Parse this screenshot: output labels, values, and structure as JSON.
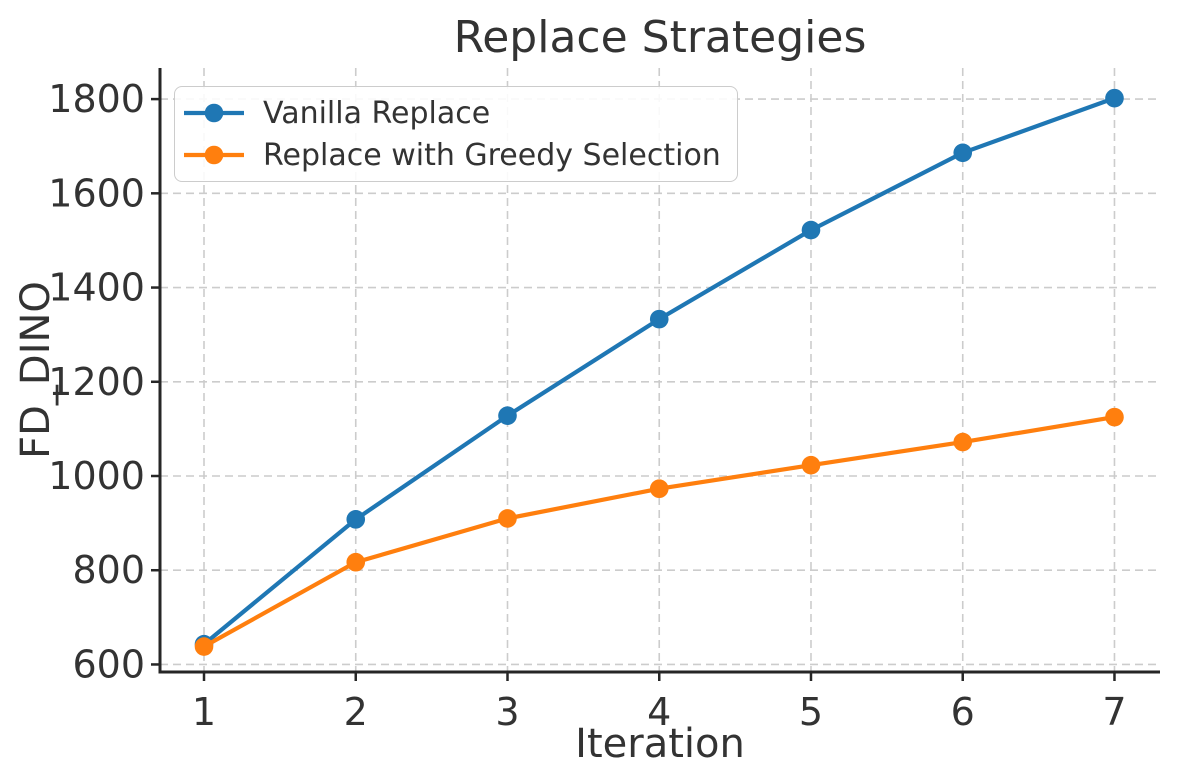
{
  "chart_data": {
    "type": "line",
    "title": "Replace Strategies",
    "xlabel": "Iteration",
    "ylabel": "FD_DINO",
    "x": [
      1,
      2,
      3,
      4,
      5,
      6,
      7
    ],
    "series": [
      {
        "name": "Vanilla Replace",
        "color": "#1f77b4",
        "values": [
          643,
          908,
          1128,
          1333,
          1522,
          1686,
          1802
        ]
      },
      {
        "name": "Replace with Greedy Selection",
        "color": "#ff7f0e",
        "values": [
          638,
          817,
          910,
          973,
          1023,
          1072,
          1125
        ]
      }
    ],
    "xticks": [
      1,
      2,
      3,
      4,
      5,
      6,
      7
    ],
    "yticks": [
      600,
      800,
      1000,
      1200,
      1400,
      1600,
      1800
    ],
    "xlim": [
      0.71,
      7.3
    ],
    "ylim": [
      584,
      1866
    ],
    "grid": true,
    "grid_style": "dashed",
    "legend_position": "upper left",
    "colors": {
      "blue_series": "#1f77b4",
      "orange_series": "#ff7f0e",
      "text": "#333333",
      "grid": "#cccccc",
      "spine": "#262626",
      "legend_border": "#cccccc",
      "background": "#ffffff"
    }
  }
}
